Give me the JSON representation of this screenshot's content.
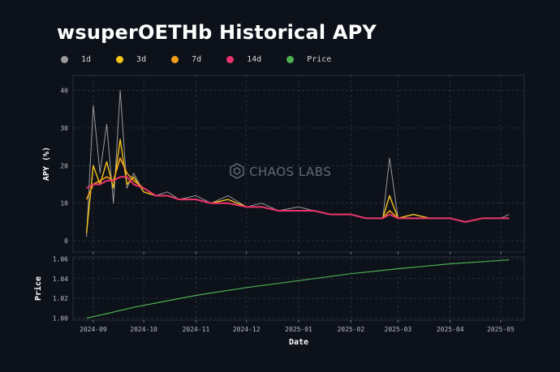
{
  "title": "wsuperOETHb Historical APY",
  "legend": [
    {
      "label": "1d",
      "color": "#9a9a9a"
    },
    {
      "label": "3d",
      "color": "#f5c518"
    },
    {
      "label": "7d",
      "color": "#f59e1b"
    },
    {
      "label": "14d",
      "color": "#e8336b"
    },
    {
      "label": "Price",
      "color": "#4caf50"
    }
  ],
  "watermark": "CHAOS LABS",
  "chart_data": [
    {
      "type": "line",
      "ylabel": "APY (%)",
      "ylim": [
        -3,
        44
      ],
      "yticks": [
        0,
        10,
        20,
        30,
        40
      ],
      "grid": true,
      "x_dates": [
        "2024-08-28",
        "2024-09-01",
        "2024-09-05",
        "2024-09-09",
        "2024-09-13",
        "2024-09-17",
        "2024-09-21",
        "2024-09-25",
        "2024-10-01",
        "2024-10-08",
        "2024-10-15",
        "2024-10-22",
        "2024-11-01",
        "2024-11-10",
        "2024-11-20",
        "2024-12-01",
        "2024-12-10",
        "2024-12-20",
        "2025-01-01",
        "2025-01-10",
        "2025-01-20",
        "2025-02-01",
        "2025-02-10",
        "2025-02-20",
        "2025-02-24",
        "2025-03-01",
        "2025-03-10",
        "2025-03-20",
        "2025-04-01",
        "2025-04-10",
        "2025-04-20",
        "2025-05-01",
        "2025-05-06"
      ],
      "series": [
        {
          "name": "1d",
          "color": "#9a9a9a",
          "values": [
            1,
            36,
            18,
            31,
            10,
            40,
            14,
            18,
            13,
            12,
            13,
            11,
            12,
            10,
            12,
            9,
            10,
            8,
            9,
            8,
            7,
            7,
            6,
            6,
            22,
            6,
            7,
            6,
            6,
            5,
            6,
            6,
            7
          ]
        },
        {
          "name": "3d",
          "color": "#f5c518",
          "values": [
            2,
            20,
            15,
            21,
            14,
            27,
            15,
            17,
            13,
            12,
            12,
            11,
            11,
            10,
            11,
            9,
            9,
            8,
            8,
            8,
            7,
            7,
            6,
            6,
            12,
            6,
            7,
            6,
            6,
            5,
            6,
            6,
            6
          ]
        },
        {
          "name": "7d",
          "color": "#f59e1b",
          "values": [
            11,
            15,
            16,
            17,
            16,
            22,
            18,
            16,
            14,
            12,
            12,
            11,
            11,
            10,
            10,
            9,
            9,
            8,
            8,
            8,
            7,
            7,
            6,
            6,
            8,
            6,
            6,
            6,
            6,
            5,
            6,
            6,
            6
          ]
        },
        {
          "name": "14d",
          "color": "#e8336b",
          "values": [
            14,
            15,
            15,
            16,
            16,
            17,
            17,
            15,
            14,
            12,
            12,
            11,
            11,
            10,
            10,
            9,
            9,
            8,
            8,
            8,
            7,
            7,
            6,
            6,
            7,
            6,
            6,
            6,
            6,
            5,
            6,
            6,
            6
          ]
        }
      ]
    },
    {
      "type": "line",
      "xlabel": "Date",
      "ylabel": "Price",
      "ylim": [
        0.998,
        1.062
      ],
      "yticks": [
        "1.00",
        "1.02",
        "1.04",
        "1.06"
      ],
      "xticks": [
        "2024-09",
        "2024-10",
        "2024-11",
        "2024-12",
        "2025-01",
        "2025-02",
        "2025-03",
        "2025-04",
        "2025-05"
      ],
      "grid": true,
      "x_dates": [
        "2024-08-28",
        "2024-09-10",
        "2024-09-25",
        "2024-10-10",
        "2024-11-01",
        "2024-12-01",
        "2025-01-01",
        "2025-02-01",
        "2025-03-01",
        "2025-04-01",
        "2025-05-06"
      ],
      "series": [
        {
          "name": "Price",
          "color": "#4caf50",
          "values": [
            1.0,
            1.005,
            1.011,
            1.016,
            1.023,
            1.031,
            1.038,
            1.045,
            1.05,
            1.055,
            1.059
          ]
        }
      ]
    }
  ]
}
